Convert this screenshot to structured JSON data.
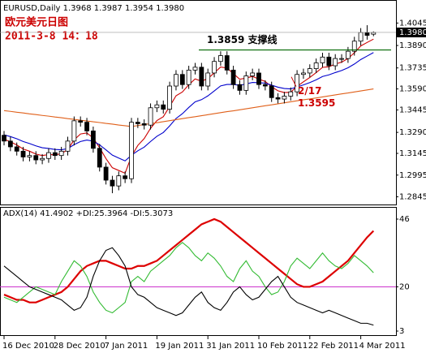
{
  "chart_data": [
    {
      "type": "candlestick",
      "title": "EURUSD,Daily  1.3968 1.3987 1.3954 1.3980",
      "annotations": [
        "欧元美元日图",
        "2011-3-8 14：18"
      ],
      "support": {
        "value": 1.3859,
        "label": "1.3859  支撑线",
        "color": "#006600"
      },
      "low_note": {
        "label": "2/17",
        "value": 1.3595,
        "color": "#cc0000"
      },
      "last_price": {
        "value": 1.398,
        "label": "1.3980"
      },
      "categories": [
        "16 Dec 2010",
        null,
        null,
        null,
        null,
        null,
        null,
        null,
        "28 Dec 2010",
        null,
        null,
        null,
        null,
        null,
        null,
        null,
        "7 Jan 2011",
        null,
        null,
        null,
        null,
        null,
        null,
        null,
        "19 Jan 2011",
        null,
        null,
        null,
        null,
        null,
        null,
        null,
        "31 Jan 2011",
        null,
        null,
        null,
        null,
        null,
        null,
        null,
        "10 Feb 2011",
        null,
        null,
        null,
        null,
        null,
        null,
        null,
        "22 Feb 2011",
        null,
        null,
        null,
        null,
        null,
        null,
        null,
        "4 Mar 2011",
        null,
        null
      ],
      "open": [
        1.327,
        1.323,
        1.319,
        1.316,
        1.312,
        1.313,
        1.31,
        1.311,
        1.315,
        1.313,
        1.316,
        1.323,
        1.337,
        1.336,
        1.33,
        1.318,
        1.305,
        1.296,
        1.292,
        1.299,
        1.297,
        1.336,
        1.335,
        1.334,
        1.346,
        1.348,
        1.345,
        1.361,
        1.369,
        1.362,
        1.372,
        1.374,
        1.361,
        1.37,
        1.378,
        1.382,
        1.372,
        1.362,
        1.358,
        1.368,
        1.37,
        1.362,
        1.361,
        1.353,
        1.352,
        1.354,
        1.357,
        1.369,
        1.37,
        1.373,
        1.377,
        1.381,
        1.375,
        1.38,
        1.38,
        1.385,
        1.392,
        1.398,
        1.3968
      ],
      "high": [
        1.33,
        1.326,
        1.322,
        1.319,
        1.316,
        1.316,
        1.314,
        1.318,
        1.318,
        1.319,
        1.326,
        1.34,
        1.34,
        1.339,
        1.333,
        1.321,
        1.308,
        1.299,
        1.302,
        1.302,
        1.339,
        1.339,
        1.338,
        1.349,
        1.351,
        1.351,
        1.364,
        1.372,
        1.372,
        1.375,
        1.377,
        1.377,
        1.373,
        1.381,
        1.385,
        1.385,
        1.375,
        1.365,
        1.371,
        1.373,
        1.373,
        1.365,
        1.364,
        1.356,
        1.357,
        1.36,
        1.372,
        1.373,
        1.376,
        1.38,
        1.384,
        1.384,
        1.383,
        1.383,
        1.388,
        1.395,
        1.401,
        1.403,
        1.3987
      ],
      "low": [
        1.32,
        1.316,
        1.313,
        1.309,
        1.309,
        1.307,
        1.307,
        1.308,
        1.31,
        1.31,
        1.313,
        1.32,
        1.333,
        1.327,
        1.315,
        1.302,
        1.293,
        1.287,
        1.289,
        1.294,
        1.294,
        1.332,
        1.331,
        1.331,
        1.343,
        1.342,
        1.342,
        1.358,
        1.359,
        1.359,
        1.369,
        1.358,
        1.358,
        1.367,
        1.375,
        1.369,
        1.359,
        1.355,
        1.355,
        1.365,
        1.359,
        1.358,
        1.35,
        1.349,
        1.349,
        1.351,
        1.354,
        1.366,
        1.367,
        1.37,
        1.374,
        1.372,
        1.372,
        1.377,
        1.377,
        1.382,
        1.389,
        1.393,
        1.3954
      ],
      "close": [
        1.323,
        1.319,
        1.316,
        1.312,
        1.313,
        1.31,
        1.311,
        1.315,
        1.313,
        1.316,
        1.323,
        1.337,
        1.336,
        1.33,
        1.318,
        1.305,
        1.296,
        1.292,
        1.299,
        1.297,
        1.336,
        1.335,
        1.334,
        1.346,
        1.348,
        1.345,
        1.361,
        1.369,
        1.362,
        1.372,
        1.374,
        1.361,
        1.37,
        1.378,
        1.382,
        1.372,
        1.362,
        1.358,
        1.368,
        1.37,
        1.362,
        1.361,
        1.353,
        1.352,
        1.354,
        1.357,
        1.369,
        1.37,
        1.373,
        1.377,
        1.381,
        1.375,
        1.38,
        1.38,
        1.385,
        1.392,
        1.398,
        1.396,
        1.398
      ],
      "series": [
        {
          "color": "#cc0000",
          "values": [
            1.3243,
            1.3225,
            1.3203,
            1.3175,
            1.316,
            1.314,
            1.313,
            1.3137,
            1.3135,
            1.3143,
            1.3172,
            1.3238,
            1.3279,
            1.3286,
            1.3251,
            1.3184,
            1.3109,
            1.3046,
            1.3027,
            1.3008,
            1.3125,
            1.32,
            1.3247,
            1.3318,
            1.3372,
            1.3398,
            1.3469,
            1.3543,
            1.3569,
            1.3619,
            1.3659,
            1.3643,
            1.3662,
            1.3701,
            1.3741,
            1.3734,
            1.3696,
            1.3657,
            1.3665,
            1.3677,
            1.3658,
            1.3642,
            1.3605,
            1.3577,
            1.3565,
            1.3567,
            1.3608,
            1.3639,
            1.3669,
            1.3703,
            1.3739,
            1.3743,
            1.3762,
            1.3775,
            1.38,
            1.384,
            1.3887,
            1.3911,
            1.3934
          ]
        },
        {
          "color": "#0000cc",
          "values": [
            1.3273,
            1.3261,
            1.3246,
            1.3227,
            1.3213,
            1.3197,
            1.3184,
            1.3179,
            1.3172,
            1.317,
            1.3178,
            1.3205,
            1.3227,
            1.3237,
            1.3229,
            1.3204,
            1.3169,
            1.3133,
            1.3113,
            1.3093,
            1.3132,
            1.3163,
            1.3188,
            1.3227,
            1.3263,
            1.3289,
            1.3335,
            1.3386,
            1.3419,
            1.3462,
            1.3501,
            1.3516,
            1.3542,
            1.3576,
            1.3611,
            1.3621,
            1.3621,
            1.3615,
            1.3624,
            1.3635,
            1.3633,
            1.363,
            1.3616,
            1.3602,
            1.3593,
            1.359,
            1.3604,
            1.3618,
            1.3634,
            1.3653,
            1.3676,
            1.3687,
            1.3703,
            1.3717,
            1.3736,
            1.3762,
            1.3793,
            1.3817,
            1.3841
          ]
        },
        {
          "color": "#e0601a",
          "values": [
            1.344,
            1.3435,
            1.3429,
            1.3424,
            1.3418,
            1.3413,
            1.3407,
            1.3402,
            1.3396,
            1.3391,
            1.3385,
            1.338,
            1.3374,
            1.3369,
            1.3363,
            1.3358,
            1.3352,
            1.3347,
            1.3341,
            1.3336,
            1.333,
            1.3337,
            1.3344,
            1.3351,
            1.3357,
            1.3364,
            1.3371,
            1.3378,
            1.3385,
            1.3392,
            1.3398,
            1.3405,
            1.3412,
            1.3419,
            1.3426,
            1.3433,
            1.3439,
            1.3446,
            1.3453,
            1.346,
            1.3467,
            1.3474,
            1.348,
            1.3487,
            1.3494,
            1.3501,
            1.3508,
            1.3515,
            1.3521,
            1.3528,
            1.3535,
            1.3542,
            1.3549,
            1.3556,
            1.3562,
            1.3569,
            1.3576,
            1.3583,
            1.359
          ]
        }
      ],
      "ylim": [
        1.282,
        1.412
      ],
      "yticks": [
        1.4045,
        {
          "value": 1.389,
          "label": "1.3890"
        },
        1.3735,
        {
          "value": 1.359,
          "label": "1.3590"
        },
        1.3445,
        {
          "value": 1.329,
          "label": "1.3290"
        },
        1.3145,
        1.2995,
        1.2845
      ]
    },
    {
      "type": "line",
      "title": "ADX(14) 41.4902 +DI:25.3964 -DI:5.3073",
      "level": 20,
      "level_color": "#cc33cc",
      "series": [
        {
          "color": "#dd0000",
          "values": [
            17,
            16,
            15,
            15,
            14,
            14,
            15,
            16,
            17,
            18,
            20,
            23,
            26,
            28,
            29,
            30,
            30,
            29,
            28,
            27,
            27,
            28,
            28,
            29,
            30,
            32,
            34,
            36,
            38,
            40,
            42,
            44,
            45,
            46,
            45,
            43,
            41,
            39,
            37,
            35,
            33,
            31,
            29,
            27,
            25,
            23,
            21,
            20,
            20,
            21,
            22,
            24,
            26,
            28,
            30,
            33,
            36,
            39,
            41.4902
          ]
        },
        {
          "color": "#33bb33",
          "values": [
            16,
            15,
            14,
            16,
            18,
            20,
            19,
            18,
            17,
            22,
            26,
            30,
            28,
            24,
            18,
            14,
            11,
            10,
            12,
            14,
            22,
            24,
            22,
            26,
            28,
            30,
            32,
            35,
            37,
            35,
            32,
            30,
            33,
            31,
            28,
            24,
            22,
            27,
            30,
            26,
            24,
            20,
            17,
            18,
            22,
            28,
            31,
            29,
            27,
            30,
            33,
            30,
            28,
            27,
            29,
            32,
            30,
            28,
            25.3964
          ]
        },
        {
          "color": "#000000",
          "values": [
            28,
            26,
            24,
            22,
            20,
            19,
            18,
            17,
            16,
            15,
            13,
            11,
            12,
            16,
            24,
            30,
            34,
            35,
            32,
            28,
            20,
            17,
            16,
            14,
            12,
            11,
            10,
            9,
            10,
            13,
            16,
            18,
            14,
            12,
            11,
            14,
            18,
            20,
            17,
            15,
            16,
            19,
            22,
            24,
            20,
            16,
            14,
            13,
            12,
            11,
            10,
            11,
            10,
            9,
            8,
            7,
            6,
            6,
            5.3073
          ]
        }
      ],
      "ylim": [
        3,
        46
      ],
      "yticks": [
        46,
        20,
        3
      ]
    }
  ]
}
